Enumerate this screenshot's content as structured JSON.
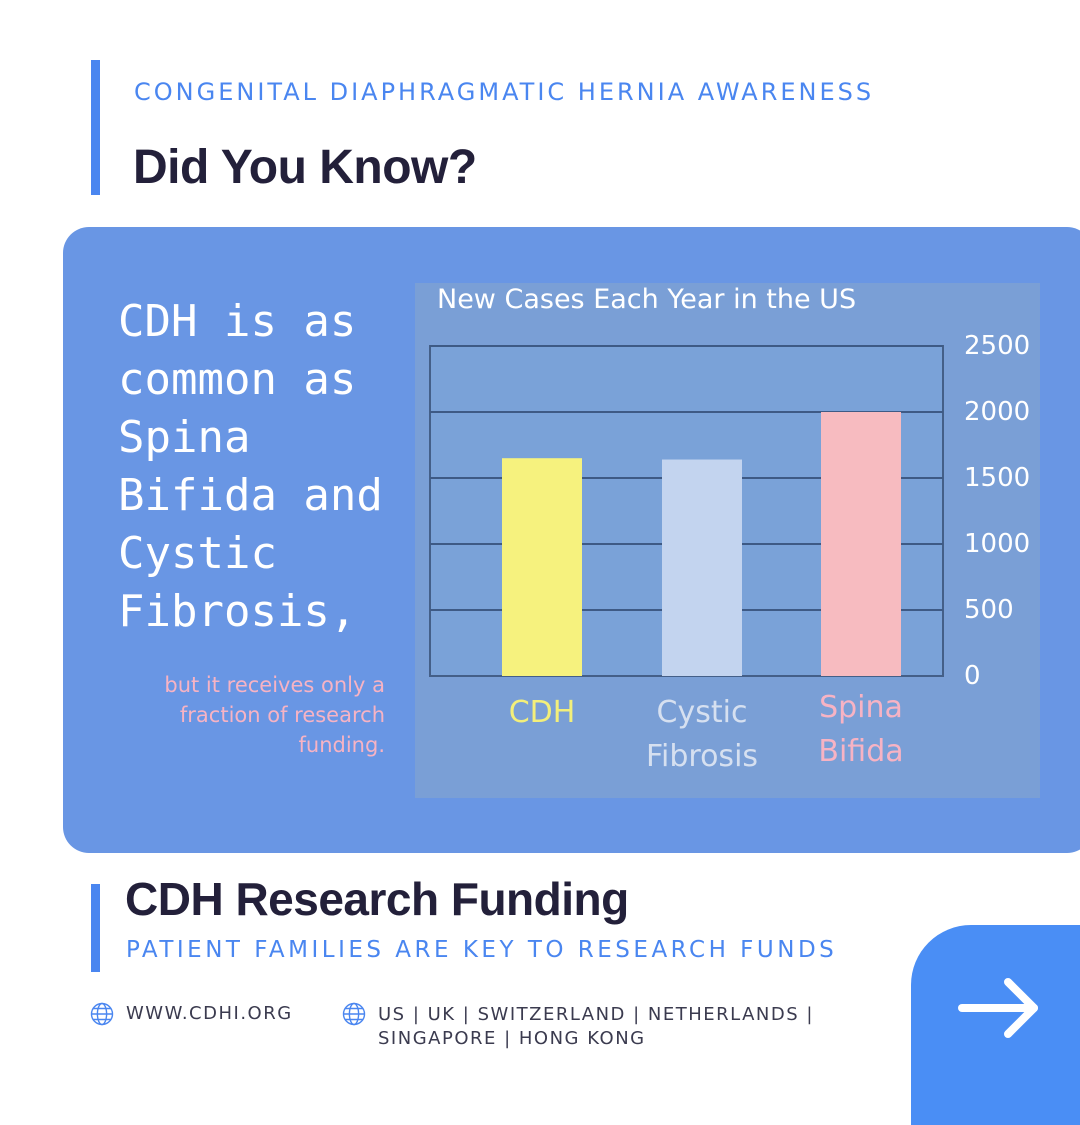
{
  "header": {
    "kicker": "CONGENITAL DIAPHRAGMATIC HERNIA AWARENESS",
    "title": "Did You Know?"
  },
  "card": {
    "claim": "CDH is as common as Spina Bifida and Cystic Fibrosis,",
    "subclaim": "but it receives only a fraction of research funding."
  },
  "chart_data": {
    "type": "bar",
    "title": "New Cases Each Year in the US",
    "categories": [
      [
        "CDH"
      ],
      [
        "Cystic",
        "Fibrosis"
      ],
      [
        "Spina",
        "Bifida"
      ]
    ],
    "values": [
      1650,
      1640,
      2000
    ],
    "colors": [
      "#f6f27e",
      "#c3d4ef",
      "#f7bbc0"
    ],
    "label_colors": [
      "#f3ef7a",
      "#d6e0f0",
      "#f7b3c4"
    ],
    "ylim": [
      0,
      2500
    ],
    "yticks": [
      "2500",
      "2000",
      "1500",
      "1000",
      "500",
      "0"
    ],
    "ytick_values": [
      2500,
      2000,
      1500,
      1000,
      500,
      0
    ],
    "grid": true,
    "xlabel": "",
    "ylabel": ""
  },
  "footer": {
    "title": "CDH Research Funding",
    "kicker": "PATIENT FAMILIES ARE KEY TO RESEARCH FUNDS",
    "url": "WWW.CDHI.ORG",
    "countries": "US  |  UK   | SWITZERLAND |  NETHERLANDS  |\nSINGAPORE  |  HONG KONG",
    "globe_icon": "globe-icon",
    "next_icon": "arrow-right-icon"
  },
  "colors": {
    "accent": "#4a86f0",
    "card": "#6996e4",
    "heading": "#23203a"
  }
}
